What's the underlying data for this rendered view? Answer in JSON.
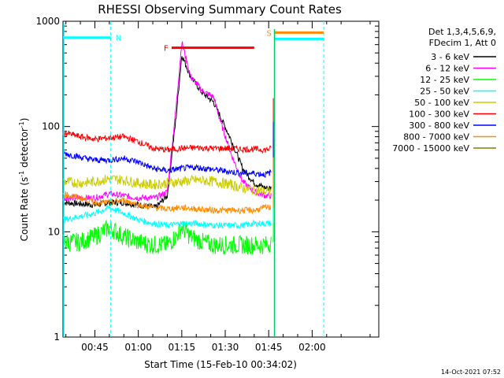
{
  "chart_data": {
    "type": "line",
    "title": "RHESSI Observing Summary Count Rates",
    "xlabel": "Start Time (15-Feb-10 00:34:02)",
    "ylabel_main": "Count Rate (s",
    "ylabel_sup1": "-1",
    "ylabel_mid": " detector",
    "ylabel_sup2": "-1",
    "ylabel_end": ")",
    "yscale": "log",
    "ylim": [
      1,
      1000
    ],
    "xlim_minutes": [
      34.0,
      143.0
    ],
    "x_ticks": [
      {
        "min": 45,
        "label": "00:45"
      },
      {
        "min": 60,
        "label": "01:00"
      },
      {
        "min": 75,
        "label": "01:15"
      },
      {
        "min": 90,
        "label": "01:30"
      },
      {
        "min": 105,
        "label": "01:45"
      },
      {
        "min": 120,
        "label": "02:00"
      }
    ],
    "y_ticks": [
      {
        "value": 1,
        "label": "1"
      },
      {
        "value": 10,
        "label": "10"
      },
      {
        "value": 100,
        "label": "100"
      },
      {
        "value": 1000,
        "label": "1000"
      }
    ],
    "legend_header": [
      "Det 1,3,4,5,6,9,",
      "FDecim 1, Att 0"
    ],
    "series": [
      {
        "name": "3 - 6 keV",
        "color": "#000000",
        "x": [
          34,
          45,
          50,
          55,
          60,
          66,
          70,
          73,
          75,
          78,
          82,
          86,
          88,
          92,
          96,
          100,
          104,
          106
        ],
        "y": [
          19,
          18,
          19,
          19,
          18,
          17,
          22,
          120,
          480,
          300,
          210,
          170,
          130,
          75,
          40,
          29,
          26,
          26
        ]
      },
      {
        "name": "6 - 12 keV",
        "color": "#ff00ff",
        "x": [
          34,
          45,
          50,
          55,
          60,
          66,
          70,
          73,
          75,
          78,
          82,
          86,
          88,
          92,
          96,
          100,
          104,
          106
        ],
        "y": [
          21,
          21,
          23,
          22,
          21,
          21,
          24,
          150,
          640,
          300,
          220,
          190,
          120,
          55,
          30,
          24,
          22,
          22
        ]
      },
      {
        "name": "12 - 25 keV",
        "color": "#00ff00",
        "x": [
          34,
          40,
          45,
          50,
          55,
          60,
          65,
          70,
          73,
          75,
          78,
          82,
          86,
          92,
          96,
          100,
          104,
          106
        ],
        "y": [
          8,
          8,
          9,
          11,
          9,
          8,
          7.5,
          7.5,
          9,
          11,
          9,
          8,
          7.5,
          7.5,
          7.5,
          7.5,
          7.5,
          8
        ]
      },
      {
        "name": "25 - 50 keV",
        "color": "#00ffff",
        "x": [
          34,
          40,
          45,
          50,
          55,
          60,
          65,
          70,
          75,
          80,
          86,
          92,
          96,
          100,
          104,
          106
        ],
        "y": [
          13,
          14,
          15,
          17,
          15,
          13,
          12,
          11.5,
          12,
          12,
          11.5,
          11.5,
          11.5,
          12,
          12,
          12
        ]
      },
      {
        "name": "50 - 100 keV",
        "color": "#cccc00",
        "x": [
          34,
          40,
          45,
          50,
          55,
          60,
          65,
          70,
          75,
          80,
          86,
          92,
          96,
          100,
          104,
          106
        ],
        "y": [
          30,
          29,
          30,
          32,
          31,
          29,
          28,
          29,
          30,
          31,
          30,
          28,
          26,
          25,
          24,
          24
        ]
      },
      {
        "name": "100 - 300 keV",
        "color": "#ff0000",
        "x": [
          34,
          40,
          45,
          50,
          55,
          60,
          65,
          70,
          75,
          80,
          86,
          92,
          96,
          100,
          104,
          106
        ],
        "y": [
          88,
          80,
          76,
          78,
          80,
          72,
          62,
          60,
          62,
          63,
          62,
          62,
          61,
          61,
          60,
          62
        ]
      },
      {
        "name": "300 - 800 keV",
        "color": "#0000ff",
        "x": [
          34,
          40,
          45,
          50,
          55,
          60,
          65,
          70,
          75,
          80,
          86,
          92,
          96,
          100,
          104,
          106
        ],
        "y": [
          56,
          51,
          48,
          48,
          50,
          46,
          40,
          38,
          40,
          41,
          39,
          37,
          36,
          36,
          35,
          37
        ]
      },
      {
        "name": "800 - 7000 keV",
        "color": "#ff8c00",
        "x": [
          34,
          40,
          45,
          50,
          55,
          60,
          65,
          70,
          75,
          80,
          86,
          92,
          96,
          100,
          104,
          106
        ],
        "y": [
          23,
          21,
          19,
          19,
          20,
          18,
          17,
          16.5,
          17,
          16.5,
          16,
          16,
          16,
          16,
          17,
          17
        ]
      },
      {
        "name": "7000 - 15000 keV",
        "color": "#808000",
        "x": [],
        "y": []
      }
    ],
    "flag_markers": [
      {
        "label": "N",
        "x_start": 34.0,
        "x_end": 50.5,
        "value": 700,
        "color": "#00ffff",
        "vline": 50.5
      },
      {
        "label": "F",
        "x_start": 71.5,
        "x_end": 100.0,
        "value": 560,
        "color": "#ff0000"
      },
      {
        "label": "S",
        "x_start": 107.0,
        "x_end": 124.0,
        "value": 780,
        "color": "#ff8c00"
      }
    ],
    "after_gap_line": {
      "x_start": 107.0,
      "x_end": 124.0,
      "value": 680,
      "color": "#00ffff",
      "vline": 124.0
    }
  },
  "timestamp": "14-Oct-2021 07:52"
}
